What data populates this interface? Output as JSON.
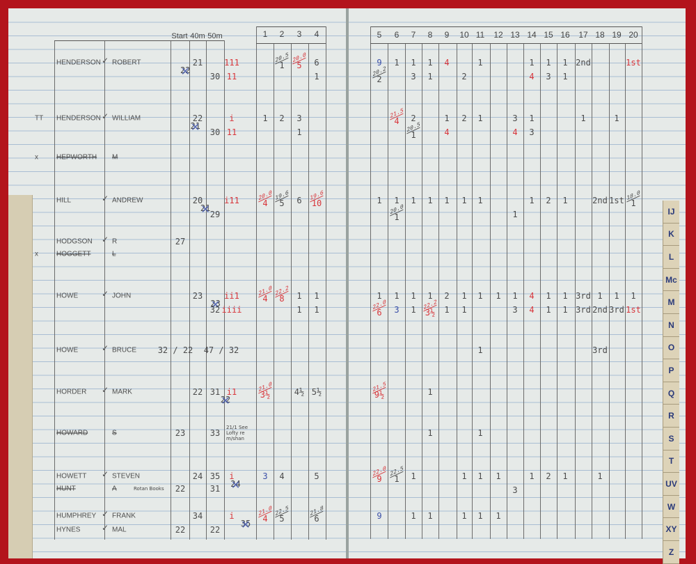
{
  "header_left": {
    "start": "Start",
    "m40": "40m",
    "m50": "50m"
  },
  "columns_left": [
    "1",
    "2",
    "3",
    "4"
  ],
  "columns_right": [
    "5",
    "6",
    "7",
    "8",
    "9",
    "10",
    "11",
    "12",
    "13",
    "14",
    "15",
    "16",
    "17",
    "18",
    "19",
    "20"
  ],
  "index_tabs": [
    "IJ",
    "K",
    "L",
    "Mc",
    "M",
    "N",
    "O",
    "P",
    "Q",
    "R",
    "S",
    "T",
    "UV",
    "W",
    "XY",
    "Z"
  ],
  "colors": {
    "pencil": "#4b4b4b",
    "red_ink": "#d8353a",
    "blue_ink": "#3a4fa8",
    "cover": "#b3141c"
  },
  "rows": [
    {
      "prefix": "",
      "surname": "HENDERSON",
      "first": "ROBERT",
      "tick": true,
      "struck": false,
      "entries": [
        {
          "c": "start",
          "t": "22",
          "x": 1
        },
        {
          "c": "m40",
          "t": "21"
        },
        {
          "c": "m50",
          "l": 2,
          "t": "30"
        },
        {
          "c": "marks",
          "t": "111",
          "k": "r"
        },
        {
          "c": "marks",
          "l": 2,
          "t": "11",
          "k": "r"
        },
        {
          "c": "2",
          "t": "1",
          "f": "20.5"
        },
        {
          "c": "3",
          "t": "5",
          "f": "20.0",
          "k": "r"
        },
        {
          "c": "4",
          "t": "6"
        },
        {
          "c": "4",
          "l": 2,
          "t": "1"
        },
        {
          "c": "5",
          "t": "9",
          "k": "b"
        },
        {
          "c": "5",
          "l": 2,
          "t": "2",
          "f": "20.2"
        },
        {
          "c": "6",
          "t": "1"
        },
        {
          "c": "7",
          "t": "1"
        },
        {
          "c": "7",
          "l": 2,
          "t": "3"
        },
        {
          "c": "8",
          "t": "1"
        },
        {
          "c": "8",
          "l": 2,
          "t": "1"
        },
        {
          "c": "9",
          "t": "4",
          "k": "r"
        },
        {
          "c": "10",
          "l": 2,
          "t": "2"
        },
        {
          "c": "11",
          "t": "1"
        },
        {
          "c": "14",
          "t": "1"
        },
        {
          "c": "14",
          "l": 2,
          "t": "4",
          "k": "r"
        },
        {
          "c": "15",
          "t": "1"
        },
        {
          "c": "15",
          "l": 2,
          "t": "3"
        },
        {
          "c": "16",
          "t": "1"
        },
        {
          "c": "16",
          "l": 2,
          "t": "1"
        },
        {
          "c": "17",
          "t": "2nd"
        },
        {
          "c": "20",
          "t": "1st",
          "k": "r"
        }
      ]
    },
    {
      "prefix": "TT",
      "surname": "HENDERSON",
      "first": "WILLIAM",
      "tick": true,
      "struck": false,
      "entries": [
        {
          "c": "start",
          "t": "21",
          "x": 1
        },
        {
          "c": "m40",
          "t": "22"
        },
        {
          "c": "m50",
          "l": 2,
          "t": "30"
        },
        {
          "c": "marks",
          "t": "i",
          "k": "r"
        },
        {
          "c": "marks",
          "l": 2,
          "t": "11",
          "k": "r"
        },
        {
          "c": "1",
          "t": "1"
        },
        {
          "c": "2",
          "t": "2"
        },
        {
          "c": "3",
          "t": "3"
        },
        {
          "c": "3",
          "l": 2,
          "t": "1"
        },
        {
          "c": "6",
          "t": "4",
          "f": "21.5",
          "k": "r"
        },
        {
          "c": "7",
          "t": "2"
        },
        {
          "c": "7",
          "l": 2,
          "t": "1",
          "f": "20.5"
        },
        {
          "c": "9",
          "t": "1"
        },
        {
          "c": "9",
          "l": 2,
          "t": "4",
          "k": "r"
        },
        {
          "c": "10",
          "t": "2"
        },
        {
          "c": "11",
          "t": "1"
        },
        {
          "c": "13",
          "t": "3"
        },
        {
          "c": "13",
          "l": 2,
          "t": "4",
          "k": "r"
        },
        {
          "c": "14",
          "t": "1"
        },
        {
          "c": "14",
          "l": 2,
          "t": "3"
        },
        {
          "c": "17",
          "t": "1"
        },
        {
          "c": "19",
          "t": "1"
        }
      ]
    },
    {
      "prefix": "x",
      "surname": "HEPWORTH",
      "first": "M",
      "tick": false,
      "struck": true,
      "entries": []
    },
    {
      "prefix": "",
      "surname": "HILL",
      "first": "ANDREW",
      "tick": true,
      "struck": false,
      "entries": [
        {
          "c": "start",
          "t": "21",
          "x": 1
        },
        {
          "c": "m40",
          "t": "20"
        },
        {
          "c": "m50",
          "l": 2,
          "t": "29"
        },
        {
          "c": "marks",
          "t": "i11",
          "k": "r"
        },
        {
          "c": "1",
          "t": "4",
          "f": "20.0",
          "k": "r"
        },
        {
          "c": "2",
          "t": "5",
          "f": "19.6"
        },
        {
          "c": "3",
          "t": "6"
        },
        {
          "c": "4",
          "t": "10",
          "f": "19.6",
          "k": "r"
        },
        {
          "c": "5",
          "t": "1"
        },
        {
          "c": "6",
          "t": "1"
        },
        {
          "c": "6",
          "l": 2,
          "t": "1",
          "f": "20.0"
        },
        {
          "c": "7",
          "t": "1"
        },
        {
          "c": "8",
          "t": "1"
        },
        {
          "c": "9",
          "t": "1"
        },
        {
          "c": "10",
          "t": "1"
        },
        {
          "c": "11",
          "t": "1"
        },
        {
          "c": "13",
          "l": 2,
          "t": "1"
        },
        {
          "c": "14",
          "t": "1"
        },
        {
          "c": "15",
          "t": "2"
        },
        {
          "c": "16",
          "t": "1"
        },
        {
          "c": "18",
          "t": "2nd"
        },
        {
          "c": "19",
          "t": "1st"
        },
        {
          "c": "20",
          "t": "1",
          "f": "18.0"
        }
      ]
    },
    {
      "prefix": "",
      "surname": "HODGSON",
      "first": "R",
      "tick": true,
      "struck": false,
      "entries": [
        {
          "c": "start",
          "t": "27"
        }
      ]
    },
    {
      "prefix": "x",
      "surname": "HOGGETT",
      "first": "L",
      "tick": false,
      "struck": true,
      "entries": []
    },
    {
      "prefix": "",
      "surname": "HOWE",
      "first": "JOHN",
      "tick": true,
      "struck": false,
      "entries": [
        {
          "c": "start",
          "t": "23",
          "x": 1
        },
        {
          "c": "m40",
          "t": "23"
        },
        {
          "c": "m50",
          "l": 2,
          "t": "32"
        },
        {
          "c": "marks",
          "t": "ii1",
          "k": "r"
        },
        {
          "c": "marks",
          "l": 2,
          "t": "iiii",
          "k": "r"
        },
        {
          "c": "1",
          "t": "4",
          "f": "21.0",
          "k": "r"
        },
        {
          "c": "2",
          "t": "8",
          "f": "22.2",
          "k": "r"
        },
        {
          "c": "3",
          "t": "1"
        },
        {
          "c": "3",
          "l": 2,
          "t": "1"
        },
        {
          "c": "4",
          "t": "1"
        },
        {
          "c": "4",
          "l": 2,
          "t": "1"
        },
        {
          "c": "5",
          "t": "1"
        },
        {
          "c": "6",
          "t": "1"
        },
        {
          "c": "7",
          "t": "1"
        },
        {
          "c": "8",
          "t": "1"
        },
        {
          "c": "9",
          "t": "2"
        },
        {
          "c": "10",
          "t": "1"
        },
        {
          "c": "11",
          "t": "1"
        },
        {
          "c": "12",
          "t": "1"
        },
        {
          "c": "13",
          "t": "1"
        },
        {
          "c": "14",
          "t": "4",
          "k": "r"
        },
        {
          "c": "15",
          "t": "1"
        },
        {
          "c": "16",
          "t": "1"
        },
        {
          "c": "17",
          "t": "3rd"
        },
        {
          "c": "18",
          "t": "1"
        },
        {
          "c": "19",
          "t": "1"
        },
        {
          "c": "20",
          "t": "1"
        },
        {
          "c": "5",
          "l": 2,
          "t": "6",
          "f": "22.0",
          "k": "r"
        },
        {
          "c": "6",
          "l": 2,
          "t": "3",
          "k": "b"
        },
        {
          "c": "7",
          "l": 2,
          "t": "1"
        },
        {
          "c": "8",
          "l": 2,
          "t": "3½",
          "f": "22.2",
          "k": "r"
        },
        {
          "c": "9",
          "l": 2,
          "t": "1"
        },
        {
          "c": "10",
          "l": 2,
          "t": "1"
        },
        {
          "c": "13",
          "l": 2,
          "t": "3"
        },
        {
          "c": "14",
          "l": 2,
          "t": "4",
          "k": "r"
        },
        {
          "c": "15",
          "l": 2,
          "t": "1"
        },
        {
          "c": "16",
          "l": 2,
          "t": "1"
        },
        {
          "c": "17",
          "l": 2,
          "t": "3rd"
        },
        {
          "c": "18",
          "l": 2,
          "t": "2nd"
        },
        {
          "c": "19",
          "l": 2,
          "t": "3rd"
        },
        {
          "c": "20",
          "l": 2,
          "t": "1st",
          "k": "r"
        }
      ]
    },
    {
      "prefix": "",
      "surname": "HOWE",
      "first": "BRUCE",
      "tick": true,
      "struck": false,
      "entries": [
        {
          "c": "start",
          "t": "32 / 22"
        },
        {
          "c": "m50",
          "t": "47 / 32"
        },
        {
          "c": "11",
          "t": "1"
        },
        {
          "c": "18",
          "t": "3rd"
        }
      ]
    },
    {
      "prefix": "",
      "surname": "HORDER",
      "first": "MARK",
      "tick": true,
      "struck": false,
      "entries": [
        {
          "c": "start",
          "t": "22",
          "x": 1
        },
        {
          "c": "m40",
          "t": "22"
        },
        {
          "c": "m50",
          "t": "31"
        },
        {
          "c": "marks",
          "t": "i1",
          "k": "r"
        },
        {
          "c": "1",
          "t": "3½",
          "f": "21.0",
          "k": "r"
        },
        {
          "c": "3",
          "t": "4½"
        },
        {
          "c": "4",
          "t": "5½"
        },
        {
          "c": "5",
          "t": "9½",
          "f": "21.5",
          "k": "r"
        },
        {
          "c": "8",
          "t": "1"
        }
      ]
    },
    {
      "prefix": "",
      "surname": "HOWARD",
      "first": "S",
      "tick": false,
      "struck": true,
      "note": "21/1 See Lofty re m/shan",
      "entries": [
        {
          "c": "start",
          "t": "23"
        },
        {
          "c": "m50",
          "t": "33"
        },
        {
          "c": "8",
          "t": "1"
        },
        {
          "c": "11",
          "t": "1"
        }
      ]
    },
    {
      "prefix": "",
      "surname": "HOWETT",
      "first": "STEVEN",
      "tick": true,
      "struck": false,
      "entries": [
        {
          "c": "start",
          "t": "24",
          "x": 1
        },
        {
          "c": "m40",
          "t": "24"
        },
        {
          "c": "m50",
          "t": "35"
        },
        {
          "c": "marks",
          "t": "i",
          "k": "r"
        },
        {
          "c": "1",
          "t": "3",
          "k": "b"
        },
        {
          "c": "2",
          "t": "4"
        },
        {
          "c": "4",
          "t": "5"
        },
        {
          "c": "5",
          "t": "9",
          "f": "22.0",
          "k": "r"
        },
        {
          "c": "6",
          "t": "1",
          "f": "22.5"
        },
        {
          "c": "7",
          "t": "1"
        },
        {
          "c": "10",
          "t": "1"
        },
        {
          "c": "11",
          "t": "1"
        },
        {
          "c": "12",
          "t": "1"
        },
        {
          "c": "14",
          "t": "1"
        },
        {
          "c": "15",
          "t": "2"
        },
        {
          "c": "16",
          "t": "1"
        },
        {
          "c": "18",
          "t": "1"
        },
        {
          "c": "13",
          "l": 2,
          "t": "3"
        }
      ]
    },
    {
      "prefix": "",
      "surname": "HUNT",
      "first": "A",
      "tick": false,
      "struck": true,
      "note": "Rotan Books",
      "entries": [
        {
          "c": "start",
          "t": "22"
        },
        {
          "c": "m50",
          "t": "31"
        }
      ]
    },
    {
      "prefix": "",
      "surname": "HUMPHREY",
      "first": "FRANK",
      "tick": true,
      "struck": false,
      "entries": [
        {
          "c": "start",
          "t": "35",
          "x": 1
        },
        {
          "c": "m40",
          "t": "34"
        },
        {
          "c": "marks",
          "t": "i",
          "k": "r"
        },
        {
          "c": "1",
          "t": "4",
          "f": "21.0",
          "k": "r"
        },
        {
          "c": "2",
          "t": "5",
          "f": "22.5"
        },
        {
          "c": "4",
          "t": "6",
          "f": "21.8"
        },
        {
          "c": "5",
          "t": "9",
          "k": "b"
        },
        {
          "c": "7",
          "t": "1"
        },
        {
          "c": "8",
          "t": "1"
        },
        {
          "c": "10",
          "t": "1"
        },
        {
          "c": "11",
          "t": "1"
        },
        {
          "c": "12",
          "t": "1"
        }
      ]
    },
    {
      "prefix": "",
      "surname": "HYNES",
      "first": "MAL",
      "tick": true,
      "struck": false,
      "entries": [
        {
          "c": "start",
          "t": "22"
        },
        {
          "c": "m50",
          "t": "22"
        }
      ]
    }
  ]
}
